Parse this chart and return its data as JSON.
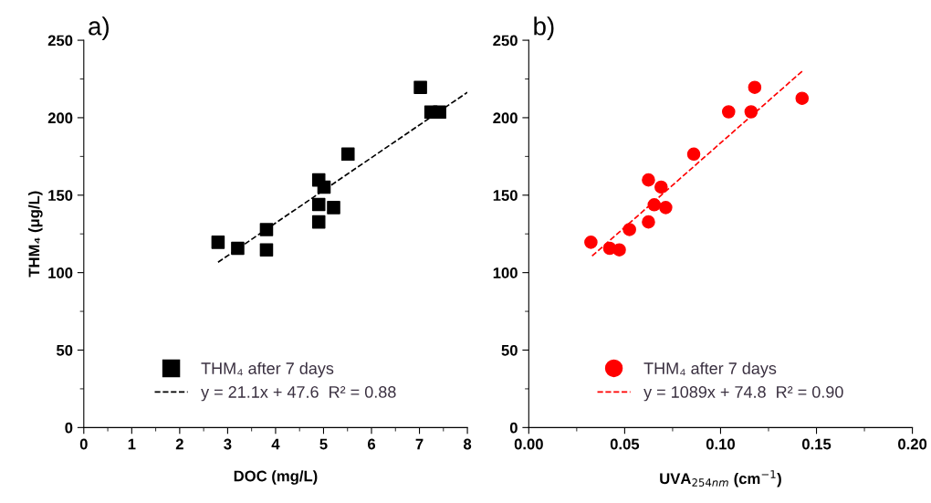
{
  "chart_data": [
    {
      "type": "scatter",
      "ylabel": "THM₄ (μg/L)",
      "xlabel": "DOC (mg/L)",
      "annotations": [
        "a)"
      ],
      "xlim": [
        0,
        8
      ],
      "xticks": [
        0,
        1,
        2,
        3,
        4,
        5,
        6,
        7,
        8
      ],
      "ylim": [
        0,
        250
      ],
      "yticks": [
        0,
        50,
        100,
        150,
        200,
        250
      ],
      "grid": false,
      "legend": "bottom",
      "series": [
        {
          "name": "THM₄ after 7 days",
          "marker": "square",
          "color": "#000000",
          "x": [
            2.8,
            3.21,
            3.81,
            3.81,
            4.9,
            5.01,
            4.9,
            4.9,
            5.21,
            5.51,
            7.02,
            7.24,
            7.42
          ],
          "values": [
            119.6,
            115.7,
            127.8,
            114.7,
            159.8,
            155.2,
            144.0,
            132.7,
            142.0,
            176.5,
            219.6,
            203.6,
            203.6
          ]
        },
        {
          "name": "y = 21.1x + 47.6  R² = 0.88",
          "type": "line",
          "line_style": "dashed",
          "color": "#000000",
          "x": [
            2.8,
            8.0
          ],
          "values": [
            106.7,
            216.4
          ]
        }
      ]
    },
    {
      "type": "scatter",
      "xlabel": "UVA$_{254nm}$ (cm$^{−1}$)",
      "annotations": [
        "b)"
      ],
      "xlim": [
        0,
        0.2
      ],
      "xticks": [
        {
          "value": 0,
          "label": "0.00"
        },
        0.05,
        {
          "value": 0.1,
          "label": "0.10"
        },
        0.15,
        {
          "value": 0.2,
          "label": "0.20"
        }
      ],
      "ylim": [
        0,
        250
      ],
      "yticks": [
        0,
        50,
        100,
        150,
        200,
        250
      ],
      "grid": false,
      "legend": "bottom",
      "series": [
        {
          "name": "THM₄ after 7 days",
          "marker": "circle",
          "color": "#ff0000",
          "x": [
            0.0324,
            0.0422,
            0.0472,
            0.0525,
            0.0624,
            0.0624,
            0.0654,
            0.069,
            0.0714,
            0.086,
            0.1042,
            0.1159,
            0.1178,
            0.1425
          ],
          "values": [
            119.6,
            115.7,
            114.7,
            127.8,
            159.8,
            132.7,
            143.8,
            155.2,
            142.0,
            176.5,
            203.8,
            203.8,
            219.6,
            212.5
          ]
        },
        {
          "name": "y = 1089x + 74.8  R² = 0.90",
          "type": "line",
          "line_style": "dashed",
          "color": "#ff0000",
          "x": [
            0.033,
            0.143
          ],
          "values": [
            110.7,
            230.5
          ]
        }
      ]
    }
  ]
}
